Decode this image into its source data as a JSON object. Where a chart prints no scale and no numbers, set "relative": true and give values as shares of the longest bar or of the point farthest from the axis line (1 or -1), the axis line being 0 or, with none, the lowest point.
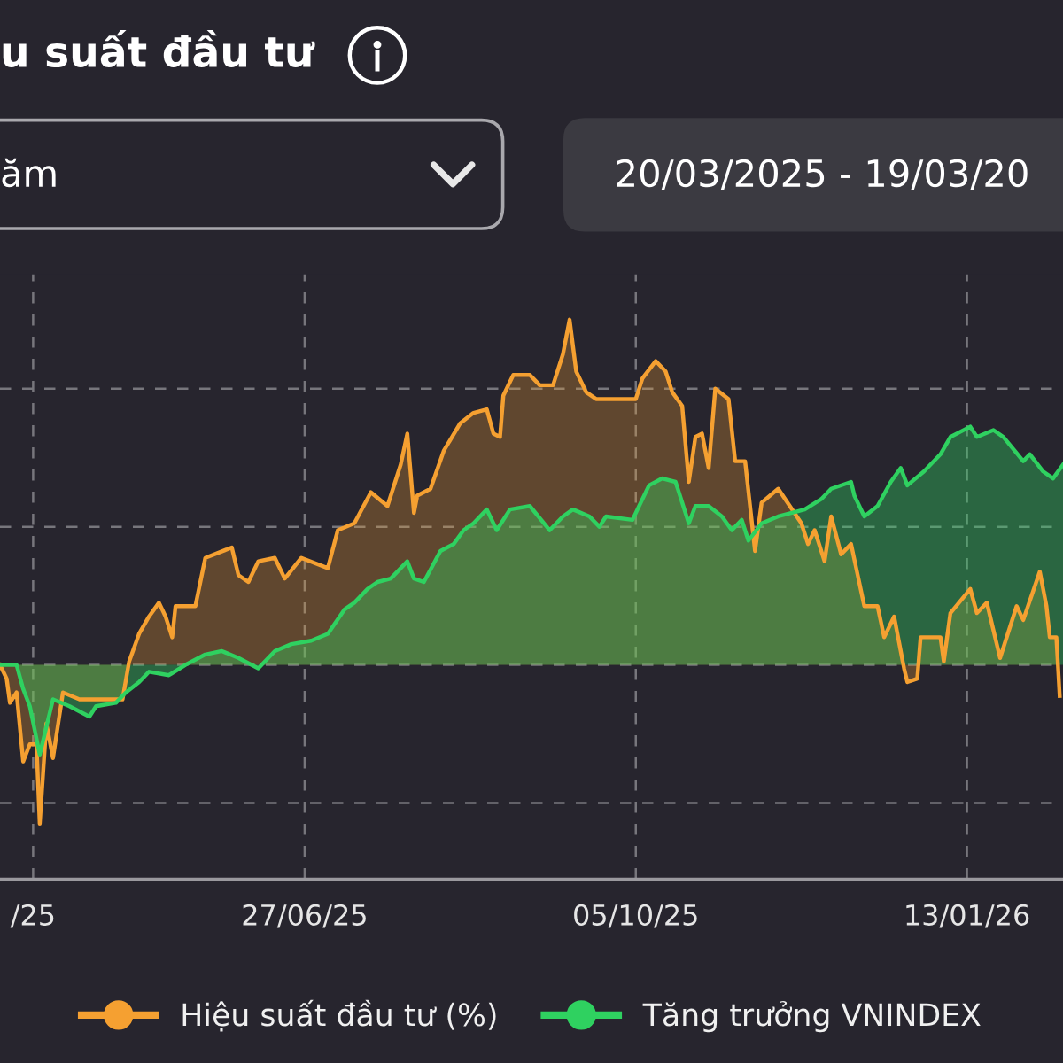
{
  "chart_data": {
    "type": "area",
    "title": "u suất đầu tư",
    "annotations": [
      "ăm",
      "20/03/2025 - 19/03/20"
    ],
    "relative": true,
    "xlim": [
      "2025-03-27",
      "2026-02-11"
    ],
    "xticks": [
      {
        "value": "2025-04-06",
        "label": "/25"
      },
      {
        "value": "2025-06-27",
        "label": "27/06/25"
      },
      {
        "value": "2025-10-05",
        "label": "05/10/25"
      },
      {
        "value": "2026-01-13",
        "label": "13/01/26"
      }
    ],
    "grid": true,
    "legend": "bottom",
    "series": [
      {
        "name": "Hiệu suất đầu tư (%)",
        "color": "#f5a031",
        "x": [
          "2025-03-27",
          "2025-03-29",
          "2025-03-30",
          "2025-04-01",
          "2025-04-03",
          "2025-04-05",
          "2025-04-07",
          "2025-04-08",
          "2025-04-10",
          "2025-04-12",
          "2025-04-15",
          "2025-04-20",
          "2025-04-28",
          "2025-05-03",
          "2025-05-05",
          "2025-05-08",
          "2025-05-11",
          "2025-05-14",
          "2025-05-16",
          "2025-05-18",
          "2025-05-19",
          "2025-05-25",
          "2025-05-28",
          "2025-06-05",
          "2025-06-07",
          "2025-06-10",
          "2025-06-13",
          "2025-06-18",
          "2025-06-21",
          "2025-06-26",
          "2025-07-04",
          "2025-07-07",
          "2025-07-12",
          "2025-07-17",
          "2025-07-22",
          "2025-07-26",
          "2025-07-28",
          "2025-07-30",
          "2025-07-31",
          "2025-08-04",
          "2025-08-08",
          "2025-08-13",
          "2025-08-17",
          "2025-08-21",
          "2025-08-23",
          "2025-08-25",
          "2025-08-26",
          "2025-08-29",
          "2025-09-03",
          "2025-09-06",
          "2025-09-10",
          "2025-09-13",
          "2025-09-15",
          "2025-09-17",
          "2025-09-20",
          "2025-09-23",
          "2025-10-05",
          "2025-10-07",
          "2025-10-11",
          "2025-10-14",
          "2025-10-16",
          "2025-10-19",
          "2025-10-21",
          "2025-10-23",
          "2025-10-25",
          "2025-10-27",
          "2025-10-29",
          "2025-11-02",
          "2025-11-04",
          "2025-11-07",
          "2025-11-10",
          "2025-11-12",
          "2025-11-17",
          "2025-11-24",
          "2025-11-26",
          "2025-11-28",
          "2025-12-01",
          "2025-12-03",
          "2025-12-06",
          "2025-12-09",
          "2025-12-13",
          "2025-12-17",
          "2025-12-19",
          "2025-12-22",
          "2025-12-25",
          "2025-12-26",
          "2025-12-29",
          "2025-12-30",
          "2026-01-05",
          "2026-01-06",
          "2026-01-08",
          "2026-01-14",
          "2026-01-16",
          "2026-01-19",
          "2026-01-23",
          "2026-01-28",
          "2026-01-30",
          "2026-02-04",
          "2026-02-06",
          "2026-02-07",
          "2026-02-09",
          "2026-02-10"
        ],
        "values": [
          0,
          -0.04,
          -0.11,
          -0.08,
          -0.28,
          -0.23,
          -0.23,
          -0.46,
          -0.17,
          -0.27,
          -0.08,
          -0.1,
          -0.1,
          -0.1,
          0.01,
          0.09,
          0.14,
          0.18,
          0.14,
          0.08,
          0.17,
          0.17,
          0.31,
          0.34,
          0.26,
          0.24,
          0.3,
          0.31,
          0.25,
          0.31,
          0.28,
          0.39,
          0.41,
          0.5,
          0.46,
          0.58,
          0.67,
          0.44,
          0.49,
          0.51,
          0.62,
          0.7,
          0.73,
          0.74,
          0.67,
          0.66,
          0.78,
          0.84,
          0.84,
          0.81,
          0.81,
          0.9,
          1.0,
          0.85,
          0.79,
          0.77,
          0.77,
          0.83,
          0.88,
          0.85,
          0.79,
          0.75,
          0.53,
          0.66,
          0.67,
          0.57,
          0.8,
          0.77,
          0.59,
          0.59,
          0.33,
          0.47,
          0.51,
          0.41,
          0.35,
          0.39,
          0.3,
          0.43,
          0.32,
          0.35,
          0.17,
          0.17,
          0.08,
          0.14,
          -0.01,
          -0.05,
          -0.04,
          0.08,
          0.08,
          0.01,
          0.15,
          0.22,
          0.15,
          0.18,
          0.02,
          0.17,
          0.13,
          0.27,
          0.17,
          0.08,
          0.08,
          -0.09
        ]
      },
      {
        "name": "Tăng trưởng VNINDEX",
        "color": "#2fd160",
        "x": [
          "2025-03-27",
          "2025-04-01",
          "2025-04-03",
          "2025-04-05",
          "2025-04-08",
          "2025-04-12",
          "2025-04-17",
          "2025-04-23",
          "2025-04-25",
          "2025-05-01",
          "2025-05-04",
          "2025-05-08",
          "2025-05-11",
          "2025-05-17",
          "2025-05-22",
          "2025-05-28",
          "2025-06-02",
          "2025-06-07",
          "2025-06-13",
          "2025-06-18",
          "2025-06-23",
          "2025-06-29",
          "2025-07-04",
          "2025-07-09",
          "2025-07-12",
          "2025-07-16",
          "2025-07-19",
          "2025-07-23",
          "2025-07-28",
          "2025-07-30",
          "2025-08-02",
          "2025-08-07",
          "2025-08-11",
          "2025-08-14",
          "2025-08-17",
          "2025-08-21",
          "2025-08-24",
          "2025-08-28",
          "2025-09-03",
          "2025-09-09",
          "2025-09-13",
          "2025-09-16",
          "2025-09-21",
          "2025-09-24",
          "2025-09-26",
          "2025-10-04",
          "2025-10-06",
          "2025-10-09",
          "2025-10-13",
          "2025-10-17",
          "2025-10-21",
          "2025-10-23",
          "2025-10-27",
          "2025-10-31",
          "2025-11-03",
          "2025-11-06",
          "2025-11-08",
          "2025-11-12",
          "2025-11-17",
          "2025-11-25",
          "2025-11-30",
          "2025-12-03",
          "2025-12-09",
          "2025-12-10",
          "2025-12-13",
          "2025-12-17",
          "2025-12-21",
          "2025-12-24",
          "2025-12-26",
          "2025-12-31",
          "2026-01-05",
          "2026-01-08",
          "2026-01-14",
          "2026-01-16",
          "2026-01-21",
          "2026-01-24",
          "2026-01-30",
          "2026-02-01",
          "2026-02-05",
          "2026-02-08",
          "2026-02-11"
        ],
        "values": [
          0,
          0,
          -0.07,
          -0.12,
          -0.26,
          -0.1,
          -0.12,
          -0.15,
          -0.12,
          -0.11,
          -0.08,
          -0.05,
          -0.02,
          -0.03,
          0,
          0.03,
          0.04,
          0.02,
          -0.01,
          0.04,
          0.06,
          0.07,
          0.09,
          0.16,
          0.18,
          0.22,
          0.24,
          0.25,
          0.3,
          0.25,
          0.24,
          0.33,
          0.35,
          0.39,
          0.41,
          0.45,
          0.39,
          0.45,
          0.46,
          0.39,
          0.43,
          0.45,
          0.43,
          0.4,
          0.43,
          0.42,
          0.46,
          0.52,
          0.54,
          0.53,
          0.41,
          0.46,
          0.46,
          0.43,
          0.39,
          0.42,
          0.36,
          0.41,
          0.43,
          0.45,
          0.48,
          0.51,
          0.53,
          0.49,
          0.43,
          0.46,
          0.53,
          0.57,
          0.52,
          0.56,
          0.61,
          0.66,
          0.69,
          0.66,
          0.68,
          0.66,
          0.59,
          0.61,
          0.56,
          0.54,
          0.58
        ]
      }
    ]
  }
}
